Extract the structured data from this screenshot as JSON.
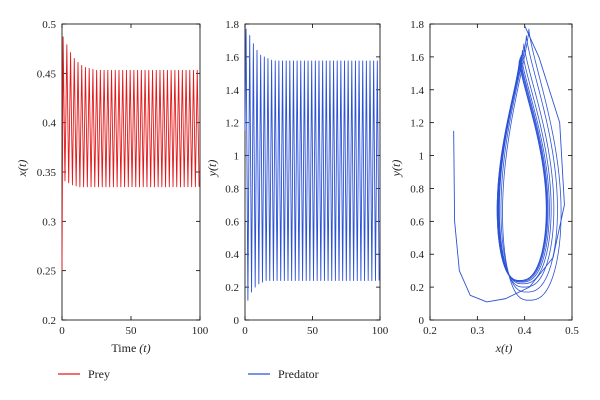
{
  "chart_data": [
    {
      "id": "prey",
      "type": "line",
      "xlabel": "Time",
      "xlabel_var": "(t)",
      "ylabel": "x(t)",
      "xlim": [
        0,
        100
      ],
      "ylim": [
        0.2,
        0.5
      ],
      "xticks": [
        0,
        50,
        100
      ],
      "yticks": [
        0.2,
        0.25,
        0.3,
        0.35,
        0.4,
        0.45,
        0.5
      ],
      "grid": false,
      "series": [
        {
          "name": "Prey",
          "color": "#e31a1c",
          "x0": 0.25,
          "period": 2.7,
          "peaks": [
            0.487,
            0.479,
            0.471,
            0.465,
            0.461,
            0.458,
            0.456,
            0.455,
            0.454
          ],
          "troughs": [
            0.341,
            0.339,
            0.337,
            0.336,
            0.335,
            0.335
          ],
          "steady_max": 0.453,
          "steady_min": 0.335
        }
      ]
    },
    {
      "id": "predator",
      "type": "line",
      "xlabel": "",
      "ylabel": "y(t)",
      "xlim": [
        0,
        100
      ],
      "ylim": [
        0,
        1.8
      ],
      "xticks": [
        0,
        50,
        100
      ],
      "yticks": [
        0,
        0.2,
        0.4,
        0.6,
        0.8,
        1,
        1.2,
        1.4,
        1.6,
        1.8
      ],
      "grid": false,
      "series": [
        {
          "name": "Predator",
          "color": "#2c52d6",
          "y0": 1.15,
          "period": 2.7,
          "peaks": [
            1.77,
            1.73,
            1.68,
            1.64,
            1.61,
            1.6,
            1.59,
            1.58
          ],
          "troughs": [
            0.12,
            0.17,
            0.2,
            0.22,
            0.23,
            0.24
          ],
          "steady_max": 1.575,
          "steady_min": 0.24
        }
      ]
    },
    {
      "id": "phase",
      "type": "line",
      "xlabel": "x(t)",
      "ylabel": "y(t)",
      "xlim": [
        0.2,
        0.5
      ],
      "ylim": [
        0,
        1.8
      ],
      "xticks": [
        0.2,
        0.3,
        0.4,
        0.5
      ],
      "yticks": [
        0,
        0.2,
        0.4,
        0.6,
        0.8,
        1,
        1.2,
        1.4,
        1.6,
        1.8
      ],
      "grid": false,
      "series": [
        {
          "color": "#2c52d6",
          "start": {
            "x": 0.25,
            "y": 1.15
          },
          "transient": [
            {
              "x": 0.25,
              "y": 1.15
            },
            {
              "x": 0.252,
              "y": 0.6
            },
            {
              "x": 0.262,
              "y": 0.3
            },
            {
              "x": 0.285,
              "y": 0.15
            },
            {
              "x": 0.32,
              "y": 0.11
            },
            {
              "x": 0.36,
              "y": 0.13
            },
            {
              "x": 0.41,
              "y": 0.2
            },
            {
              "x": 0.46,
              "y": 0.38
            },
            {
              "x": 0.484,
              "y": 0.7
            },
            {
              "x": 0.474,
              "y": 1.2
            },
            {
              "x": 0.43,
              "y": 1.6
            },
            {
              "x": 0.4,
              "y": 1.79
            }
          ],
          "loops": [
            {
              "xmin": 0.345,
              "xmax": 0.487,
              "ymin": 0.12,
              "ymax": 1.77
            },
            {
              "xmin": 0.342,
              "xmax": 0.479,
              "ymin": 0.17,
              "ymax": 1.73
            },
            {
              "xmin": 0.339,
              "xmax": 0.471,
              "ymin": 0.2,
              "ymax": 1.68
            },
            {
              "xmin": 0.338,
              "xmax": 0.465,
              "ymin": 0.22,
              "ymax": 1.64
            },
            {
              "xmin": 0.337,
              "xmax": 0.461,
              "ymin": 0.23,
              "ymax": 1.61
            },
            {
              "xmin": 0.336,
              "xmax": 0.458,
              "ymin": 0.235,
              "ymax": 1.6
            },
            {
              "xmin": 0.336,
              "xmax": 0.456,
              "ymin": 0.24,
              "ymax": 1.59
            },
            {
              "xmin": 0.335,
              "xmax": 0.455,
              "ymin": 0.24,
              "ymax": 1.58
            },
            {
              "xmin": 0.335,
              "xmax": 0.454,
              "ymin": 0.24,
              "ymax": 1.575
            }
          ]
        }
      ]
    }
  ],
  "legend": {
    "placement": "bottom",
    "items": [
      {
        "label": "Prey",
        "color": "#e31a1c"
      },
      {
        "label": "Predator",
        "color": "#2c52d6"
      }
    ]
  }
}
